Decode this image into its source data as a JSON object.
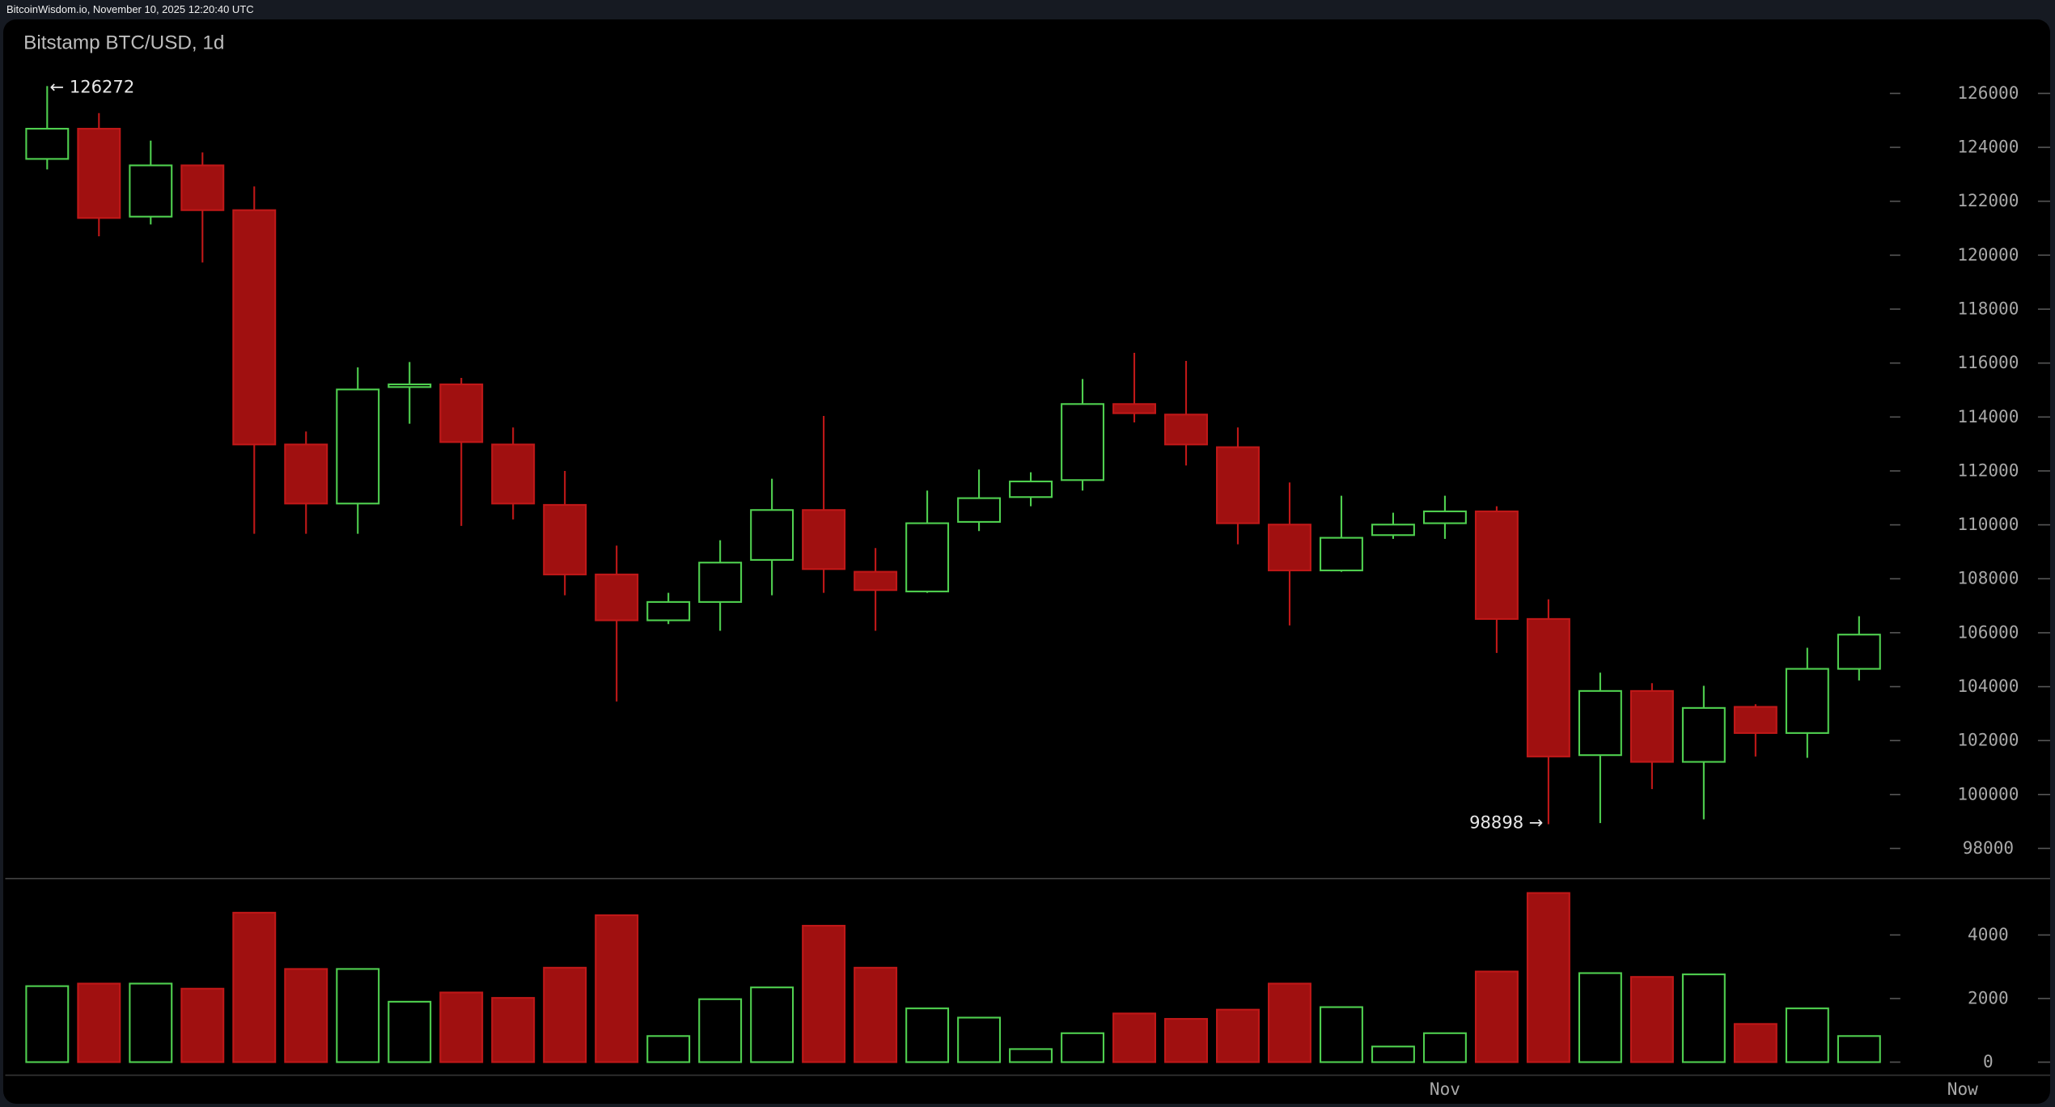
{
  "header": {
    "source_line": "BitcoinWisdom.io, November 10, 2025 12:20:40 UTC"
  },
  "chart_data": {
    "type": "candlestick",
    "title": "Bitstamp BTC/USD, 1d",
    "colors": {
      "up": "#4fcf4f",
      "down": "#a01010",
      "down_border": "#c01818",
      "background": "#000000",
      "text": "#a8a8a8"
    },
    "price_axis": {
      "ylim": [
        97000,
        127500
      ],
      "ticks": [
        "126000",
        "124000",
        "122000",
        "120000",
        "118000",
        "116000",
        "114000",
        "112000",
        "110000",
        "108000",
        "106000",
        "104000",
        "102000",
        "100000",
        "98000"
      ]
    },
    "volume_axis": {
      "ylim": [
        0,
        5600
      ],
      "ticks": [
        "4000",
        "2000",
        "0"
      ]
    },
    "x_ticks": [
      {
        "label": "Nov",
        "candle": 28
      },
      {
        "label": "Now",
        "candle": 38
      }
    ],
    "annotations": {
      "high_label": "← 126272",
      "high_candle": 1,
      "low_label": "98898 →",
      "low_candle": 30
    },
    "candles": [
      {
        "o": 123570,
        "h": 126272,
        "l": 123180,
        "c": 124690,
        "v": 2390
      },
      {
        "o": 124690,
        "h": 125270,
        "l": 120700,
        "c": 121380,
        "v": 2470
      },
      {
        "o": 121430,
        "h": 124250,
        "l": 121140,
        "c": 123330,
        "v": 2470
      },
      {
        "o": 123330,
        "h": 123810,
        "l": 119730,
        "c": 121670,
        "v": 2310
      },
      {
        "o": 121670,
        "h": 122550,
        "l": 109670,
        "c": 112980,
        "v": 4700
      },
      {
        "o": 112980,
        "h": 113460,
        "l": 109670,
        "c": 110790,
        "v": 2930
      },
      {
        "o": 110790,
        "h": 115840,
        "l": 109670,
        "c": 115020,
        "v": 2930
      },
      {
        "o": 115110,
        "h": 116040,
        "l": 113750,
        "c": 115210,
        "v": 1900
      },
      {
        "o": 115210,
        "h": 115450,
        "l": 109960,
        "c": 113070,
        "v": 2190
      },
      {
        "o": 112980,
        "h": 113610,
        "l": 110200,
        "c": 110790,
        "v": 2020
      },
      {
        "o": 110740,
        "h": 112000,
        "l": 107390,
        "c": 108160,
        "v": 2970
      },
      {
        "o": 108160,
        "h": 109230,
        "l": 103450,
        "c": 106460,
        "v": 4620
      },
      {
        "o": 106460,
        "h": 107480,
        "l": 106320,
        "c": 107140,
        "v": 820
      },
      {
        "o": 107140,
        "h": 109430,
        "l": 106070,
        "c": 108600,
        "v": 1980
      },
      {
        "o": 108700,
        "h": 111710,
        "l": 107390,
        "c": 110550,
        "v": 2350
      },
      {
        "o": 110550,
        "h": 114040,
        "l": 107480,
        "c": 108360,
        "v": 4290
      },
      {
        "o": 108260,
        "h": 109140,
        "l": 106070,
        "c": 107580,
        "v": 2970
      },
      {
        "o": 107530,
        "h": 111270,
        "l": 107480,
        "c": 110060,
        "v": 1690
      },
      {
        "o": 110110,
        "h": 112050,
        "l": 109770,
        "c": 110990,
        "v": 1400
      },
      {
        "o": 111030,
        "h": 111950,
        "l": 110690,
        "c": 111610,
        "v": 410
      },
      {
        "o": 111660,
        "h": 115410,
        "l": 111270,
        "c": 114480,
        "v": 910
      },
      {
        "o": 114480,
        "h": 116380,
        "l": 113800,
        "c": 114140,
        "v": 1530
      },
      {
        "o": 114090,
        "h": 116080,
        "l": 112200,
        "c": 112980,
        "v": 1360
      },
      {
        "o": 112880,
        "h": 113610,
        "l": 109280,
        "c": 110060,
        "v": 1650
      },
      {
        "o": 110010,
        "h": 111570,
        "l": 106270,
        "c": 108310,
        "v": 2470
      },
      {
        "o": 108310,
        "h": 111080,
        "l": 108260,
        "c": 109520,
        "v": 1730
      },
      {
        "o": 109620,
        "h": 110450,
        "l": 109480,
        "c": 110010,
        "v": 490
      },
      {
        "o": 110060,
        "h": 111080,
        "l": 109480,
        "c": 110500,
        "v": 910
      },
      {
        "o": 110500,
        "h": 110690,
        "l": 105250,
        "c": 106510,
        "v": 2850
      },
      {
        "o": 106510,
        "h": 107240,
        "l": 98898,
        "c": 101410,
        "v": 5320
      },
      {
        "o": 101460,
        "h": 104520,
        "l": 98940,
        "c": 103840,
        "v": 2800
      },
      {
        "o": 103840,
        "h": 104130,
        "l": 100200,
        "c": 101210,
        "v": 2680
      },
      {
        "o": 101210,
        "h": 104030,
        "l": 99080,
        "c": 103210,
        "v": 2760
      },
      {
        "o": 103250,
        "h": 103350,
        "l": 101410,
        "c": 102280,
        "v": 1200
      },
      {
        "o": 102280,
        "h": 105440,
        "l": 101360,
        "c": 104660,
        "v": 1690
      },
      {
        "o": 104660,
        "h": 106610,
        "l": 104230,
        "c": 105930,
        "v": 820
      }
    ]
  }
}
